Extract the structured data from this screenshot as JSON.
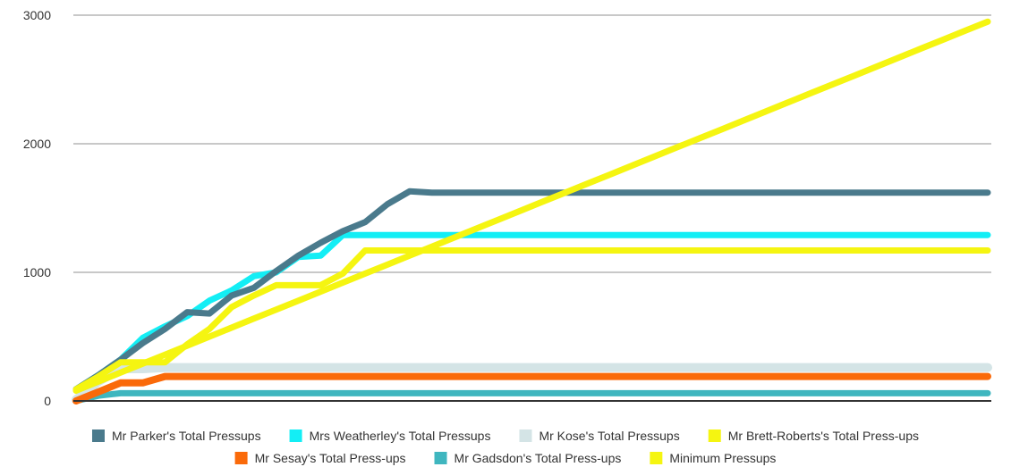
{
  "chart_data": {
    "type": "line",
    "title": "",
    "xlabel": "",
    "ylabel": "",
    "ylim": [
      0,
      3000
    ],
    "yticks": [
      0,
      1000,
      2000,
      3000
    ],
    "grid": true,
    "legend_position": "bottom",
    "x": [
      1,
      2,
      3,
      4,
      5,
      6,
      7,
      8,
      9,
      10,
      11,
      12,
      13,
      14,
      15,
      16,
      17,
      18,
      19,
      20,
      21,
      22,
      23,
      24,
      25,
      26,
      27,
      28,
      29,
      30,
      31,
      32,
      33,
      34,
      35,
      36,
      37,
      38,
      39,
      40,
      41,
      42
    ],
    "series": [
      {
        "name": "Mr Parker's Total Pressups",
        "color": "#4a7a8c",
        "width": 7,
        "values": [
          90,
          200,
          320,
          450,
          560,
          690,
          680,
          820,
          880,
          1010,
          1130,
          1230,
          1320,
          1390,
          1530,
          1630,
          1620,
          1620,
          1620,
          1620,
          1620,
          1620,
          1620,
          1620,
          1620,
          1620,
          1620,
          1620,
          1620,
          1620,
          1620,
          1620,
          1620,
          1620,
          1620,
          1620,
          1620,
          1620,
          1620,
          1620,
          1620,
          1620
        ]
      },
      {
        "name": "Mrs Weatherley's Total Pressups",
        "color": "#13eef5",
        "width": 7,
        "values": [
          90,
          200,
          320,
          490,
          580,
          660,
          780,
          860,
          970,
          1000,
          1120,
          1130,
          1290,
          1290,
          1290,
          1290,
          1290,
          1290,
          1290,
          1290,
          1290,
          1290,
          1290,
          1290,
          1290,
          1290,
          1290,
          1290,
          1290,
          1290,
          1290,
          1290,
          1290,
          1290,
          1290,
          1290,
          1290,
          1290,
          1290,
          1290,
          1290,
          1290
        ]
      },
      {
        "name": "Mr Kose's Total Pressups",
        "color": "#d4e4e6",
        "width": 10,
        "values": [
          10,
          150,
          250,
          250,
          260,
          260,
          260,
          260,
          260,
          260,
          260,
          260,
          260,
          260,
          260,
          260,
          260,
          260,
          260,
          260,
          260,
          260,
          260,
          260,
          260,
          260,
          260,
          260,
          260,
          260,
          260,
          260,
          260,
          260,
          260,
          260,
          260,
          260,
          260,
          260,
          260,
          260
        ]
      },
      {
        "name": "Mr Brett-Roberts's Total Press-ups",
        "color": "#f5f511",
        "width": 7,
        "values": [
          90,
          190,
          300,
          300,
          300,
          440,
          560,
          730,
          820,
          900,
          900,
          900,
          990,
          1170,
          1170,
          1170,
          1170,
          1170,
          1170,
          1170,
          1170,
          1170,
          1170,
          1170,
          1170,
          1170,
          1170,
          1170,
          1170,
          1170,
          1170,
          1170,
          1170,
          1170,
          1170,
          1170,
          1170,
          1170,
          1170,
          1170,
          1170,
          1170
        ]
      },
      {
        "name": "Mr Sesay's Total Press-ups",
        "color": "#fa6a0a",
        "width": 8,
        "values": [
          0,
          70,
          140,
          140,
          190,
          190,
          190,
          190,
          190,
          190,
          190,
          190,
          190,
          190,
          190,
          190,
          190,
          190,
          190,
          190,
          190,
          190,
          190,
          190,
          190,
          190,
          190,
          190,
          190,
          190,
          190,
          190,
          190,
          190,
          190,
          190,
          190,
          190,
          190,
          190,
          190,
          190
        ]
      },
      {
        "name": "Mr Gadsdon's Total Press-ups",
        "color": "#3fb6bf",
        "width": 7,
        "values": [
          0,
          40,
          60,
          60,
          60,
          60,
          60,
          60,
          60,
          60,
          60,
          60,
          60,
          60,
          60,
          60,
          60,
          60,
          60,
          60,
          60,
          60,
          60,
          60,
          60,
          60,
          60,
          60,
          60,
          60,
          60,
          60,
          60,
          60,
          60,
          60,
          60,
          60,
          60,
          60,
          60,
          60
        ]
      },
      {
        "name": "Minimum Pressups",
        "color": "#f5f511",
        "width": 7,
        "values": [
          80,
          150,
          220,
          290,
          360,
          430,
          500,
          570,
          640,
          710,
          780,
          850,
          920,
          990,
          1060,
          1130,
          1200,
          1270,
          1340,
          1410,
          1480,
          1550,
          1620,
          1690,
          1760,
          1830,
          1900,
          1970,
          2040,
          2110,
          2180,
          2250,
          2320,
          2390,
          2460,
          2530,
          2600,
          2670,
          2740,
          2810,
          2880,
          2950
        ]
      }
    ]
  }
}
